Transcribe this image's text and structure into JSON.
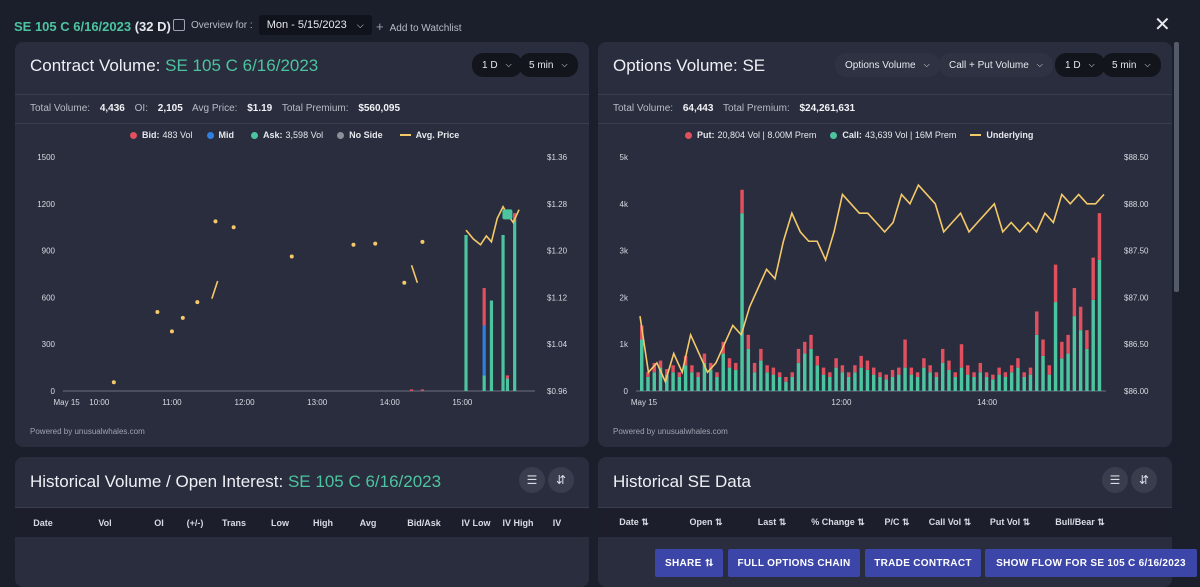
{
  "header": {
    "contract": "SE 105 C 6/16/2023",
    "days": "(32 D)",
    "overview_label": "Overview for :",
    "date_value": "Mon - 5/15/2023",
    "watchlist": "Add to Watchlist"
  },
  "contract_panel": {
    "title_prefix": "Contract Volume:",
    "title_contract": "SE 105 C 6/16/2023",
    "range": "1 D",
    "interval": "5 min",
    "stats": {
      "total_volume_label": "Total Volume:",
      "total_volume": "4,436",
      "oi_label": "OI:",
      "oi": "2,105",
      "avg_price_label": "Avg Price:",
      "avg_price": "$1.19",
      "premium_label": "Total Premium:",
      "premium": "$560,095"
    },
    "legend": {
      "bid_label": "Bid:",
      "bid_value": "483 Vol",
      "mid_label": "Mid",
      "ask_label": "Ask:",
      "ask_value": "3,598 Vol",
      "noside_label": "No Side",
      "avg_label": "Avg. Price"
    },
    "powered": "Powered by unusualwhales.com"
  },
  "options_panel": {
    "title": "Options Volume: SE",
    "metric": "Options Volume",
    "mode": "Call + Put Volume",
    "range": "1 D",
    "interval": "5 min",
    "stats": {
      "total_volume_label": "Total Volume:",
      "total_volume": "64,443",
      "premium_label": "Total Premium:",
      "premium": "$24,261,631"
    },
    "legend": {
      "put_label": "Put:",
      "put_value": "20,804 Vol",
      "put_prem": "8.00M Prem",
      "call_label": "Call:",
      "call_value": "43,639 Vol",
      "call_prem": "16M Prem",
      "underlying_label": "Underlying"
    },
    "powered": "Powered by unusualwhales.com"
  },
  "historical_panel": {
    "title_prefix": "Historical Volume / Open Interest:",
    "title_contract": "SE 105 C 6/16/2023",
    "columns": [
      "Date",
      "Vol",
      "OI",
      "(+/-)",
      "Trans",
      "Low",
      "High",
      "Avg",
      "Bid/Ask",
      "IV Low",
      "IV High",
      "IV"
    ]
  },
  "historical_se_panel": {
    "title": "Historical SE Data",
    "columns": [
      "Date ⇅",
      "Open ⇅",
      "Last ⇅",
      "% Change ⇅",
      "P/C ⇅",
      "Call Vol ⇅",
      "Put Vol ⇅",
      "Bull/Bear ⇅"
    ]
  },
  "buttons": {
    "share": "SHARE ⮁",
    "chain": "FULL OPTIONS CHAIN",
    "trade": "TRADE CONTRACT",
    "flow": "SHOW FLOW FOR SE 105 C 6/16/2023"
  },
  "chart_data": [
    {
      "type": "bar",
      "title": "Contract Volume: SE 105 C 6/16/2023",
      "x_ticks": [
        "May 15",
        "10:00",
        "11:00",
        "12:00",
        "13:00",
        "14:00",
        "15:00"
      ],
      "y_left_ticks": [
        "0",
        "300",
        "600",
        "900",
        "1200",
        "1500"
      ],
      "y_right_ticks": [
        "$0.96",
        "$1.04",
        "$1.12",
        "$1.20",
        "$1.28",
        "$1.36"
      ],
      "ylim": [
        0,
        1500
      ],
      "y2lim": [
        0.96,
        1.36
      ],
      "series": [
        {
          "name": "Avg. Price (dots)",
          "points": [
            [
              10.2,
              0.975
            ],
            [
              10.8,
              1.095
            ],
            [
              11.0,
              1.062
            ],
            [
              11.15,
              1.085
            ],
            [
              11.35,
              1.112
            ],
            [
              11.6,
              1.25
            ],
            [
              11.85,
              1.24
            ],
            [
              12.65,
              1.19
            ],
            [
              13.5,
              1.21
            ],
            [
              13.8,
              1.212
            ],
            [
              14.2,
              1.145
            ],
            [
              14.45,
              1.215
            ]
          ]
        },
        {
          "name": "Avg. Price (line)",
          "segments": [
            [
              [
                11.55,
                1.118
              ],
              [
                11.63,
                1.148
              ]
            ],
            [
              [
                14.3,
                1.175
              ],
              [
                14.38,
                1.145
              ]
            ],
            [
              [
                15.05,
                1.235
              ],
              [
                15.15,
                1.22
              ],
              [
                15.25,
                1.21
              ],
              [
                15.33,
                1.225
              ],
              [
                15.4,
                1.215
              ],
              [
                15.48,
                1.255
              ],
              [
                15.56,
                1.275
              ],
              [
                15.62,
                1.262
              ],
              [
                15.7,
                1.248
              ],
              [
                15.78,
                1.27
              ]
            ]
          ]
        },
        {
          "name": "Ask",
          "x": [
            15.05,
            15.3,
            15.4,
            15.5,
            15.56,
            15.62,
            15.72
          ],
          "values": [
            1000,
            100,
            580,
            0,
            1000,
            80,
            1100
          ]
        },
        {
          "name": "Mid",
          "x": [
            15.3
          ],
          "values": [
            320
          ]
        },
        {
          "name": "Bid",
          "x": [
            14.3,
            14.45,
            15.3,
            15.62,
            15.72
          ],
          "values": [
            10,
            10,
            240,
            20,
            40
          ]
        }
      ]
    },
    {
      "type": "bar",
      "title": "Options Volume: SE",
      "x_ticks": [
        "May 15",
        "12:00",
        "14:00"
      ],
      "y_left_ticks": [
        "0",
        "1k",
        "2k",
        "3k",
        "4k",
        "5k"
      ],
      "y_right_ticks": [
        "$86.00",
        "$86.50",
        "$87.00",
        "$87.50",
        "$88.00",
        "$88.50"
      ],
      "ylim": [
        0,
        5000
      ],
      "y2lim": [
        86,
        88.5
      ],
      "series": [
        {
          "name": "Call",
          "values": [
            1100,
            300,
            400,
            500,
            350,
            400,
            300,
            550,
            400,
            300,
            600,
            450,
            300,
            800,
            500,
            450,
            3800,
            900,
            400,
            650,
            400,
            350,
            300,
            200,
            300,
            600,
            800,
            900,
            550,
            350,
            300,
            500,
            400,
            300,
            400,
            500,
            450,
            350,
            300,
            250,
            300,
            350,
            500,
            350,
            300,
            500,
            400,
            300,
            600,
            450,
            300,
            500,
            350,
            300,
            400,
            300,
            250,
            350,
            300,
            400,
            500,
            300,
            350,
            1200,
            750,
            350,
            1900,
            700,
            800,
            1600,
            1300,
            900,
            1950,
            2800
          ]
        },
        {
          "name": "Put",
          "values": [
            300,
            100,
            200,
            150,
            120,
            150,
            100,
            200,
            150,
            100,
            200,
            150,
            100,
            250,
            200,
            150,
            500,
            300,
            200,
            250,
            150,
            150,
            100,
            100,
            100,
            300,
            250,
            300,
            200,
            150,
            100,
            200,
            150,
            100,
            150,
            250,
            200,
            150,
            100,
            100,
            150,
            150,
            600,
            150,
            100,
            200,
            150,
            100,
            300,
            200,
            100,
            500,
            200,
            100,
            200,
            100,
            100,
            150,
            100,
            150,
            200,
            100,
            150,
            500,
            350,
            200,
            800,
            350,
            400,
            600,
            500,
            400,
            900,
            1000
          ]
        },
        {
          "name": "Underlying",
          "values": [
            86.8,
            86.2,
            86.3,
            86.1,
            86.4,
            86.2,
            86.6,
            86.4,
            86.2,
            86.3,
            86.5,
            86.7,
            86.6,
            86.9,
            87.1,
            87.3,
            87.2,
            87.6,
            87.9,
            87.7,
            87.6,
            87.6,
            87.4,
            87.7,
            88.1,
            88.0,
            87.9,
            87.9,
            87.8,
            87.7,
            87.8,
            88.1,
            88.0,
            88.2,
            88.1,
            88.0,
            87.7,
            87.8,
            87.9,
            87.7,
            87.8,
            87.9,
            88.0,
            87.7,
            87.8,
            87.7,
            87.8,
            87.7,
            87.9,
            87.8,
            88.1,
            88.0,
            88.1,
            88.0,
            88.0,
            88.1
          ]
        }
      ]
    }
  ]
}
